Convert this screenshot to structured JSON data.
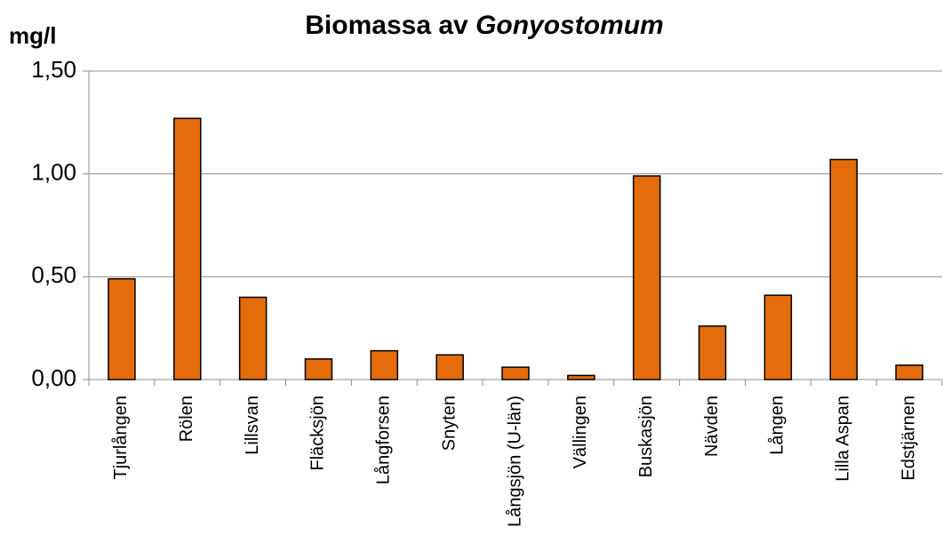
{
  "chart_data": {
    "type": "bar",
    "title": {
      "text": "Biomassa av",
      "emphasis": "Gonyostomum"
    },
    "y_label": "mg/l",
    "categories": [
      "Tjurlången",
      "Rölen",
      "Lillsvan",
      "Fläcksjön",
      "Långforsen",
      "Snyten",
      "Långsjön (U-län)",
      "Vällingen",
      "Buskasjön",
      "Nävden",
      "Lången",
      "Lilla Aspan",
      "Edstjärnen"
    ],
    "values": [
      0.49,
      1.27,
      0.4,
      0.1,
      0.14,
      0.12,
      0.06,
      0.02,
      0.99,
      0.26,
      0.41,
      1.07,
      0.07
    ],
    "color": "#e46c0a",
    "ylim": [
      0,
      1.5
    ],
    "yticks": [
      {
        "value": 0,
        "label": "0,00"
      },
      {
        "value": 0.5,
        "label": "0,50"
      },
      {
        "value": 1,
        "label": "1,00"
      },
      {
        "value": 1.5,
        "label": "1,50"
      }
    ],
    "grid": true
  }
}
